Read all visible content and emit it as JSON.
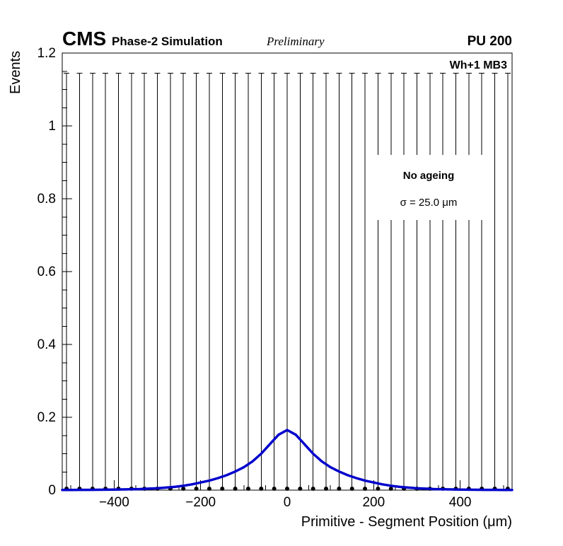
{
  "header": {
    "experiment": "CMS",
    "label": "Phase-2 Simulation",
    "style": "Preliminary",
    "pileup": "PU 200"
  },
  "plot": {
    "station_label": "Wh+1 MB3",
    "annotation": {
      "line1": "No ageing",
      "line2": "σ = 25.0 μm"
    }
  },
  "chart_data": {
    "type": "scatter",
    "title": "",
    "xlabel": "Primitive - Segment Position (μm)",
    "ylabel": "Events",
    "xlim": [
      -520,
      520
    ],
    "ylim": [
      0,
      1.2
    ],
    "grid": false,
    "legend_position": "upper-right-inside",
    "x_ticks": {
      "major": [
        -400,
        -200,
        0,
        200,
        400
      ],
      "labels": [
        "−400",
        "−200",
        "0",
        "200",
        "400"
      ],
      "minor_step": 50
    },
    "y_ticks": {
      "major": [
        0,
        0.2,
        0.4,
        0.6,
        0.8,
        1,
        1.2
      ],
      "labels": [
        "0",
        "0.2",
        "0.4",
        "0.6",
        "0.8",
        "1",
        "1.2"
      ],
      "minor_step": 0.05
    },
    "data_points": {
      "marker": "filled-circle",
      "color": "#000000",
      "x_start": -510,
      "x_step": 30,
      "count": 35,
      "y_value": 0.004,
      "error_bar_top": 1.145
    },
    "fit_curve": {
      "color": "#0000cc",
      "sigma_um": 25.0,
      "peak_y": 0.165,
      "x_start": -520,
      "x_step": 20,
      "y_values": [
        0.0005,
        0.0006,
        0.0007,
        0.0008,
        0.001,
        0.0012,
        0.0015,
        0.002,
        0.0025,
        0.003,
        0.004,
        0.005,
        0.007,
        0.009,
        0.012,
        0.016,
        0.021,
        0.026,
        0.033,
        0.041,
        0.051,
        0.063,
        0.079,
        0.1,
        0.126,
        0.152,
        0.165,
        0.152,
        0.126,
        0.1,
        0.079,
        0.063,
        0.051,
        0.041,
        0.033,
        0.026,
        0.021,
        0.016,
        0.012,
        0.009,
        0.007,
        0.005,
        0.004,
        0.003,
        0.0025,
        0.002,
        0.0015,
        0.0012,
        0.001,
        0.0008,
        0.0007,
        0.0006,
        0.0005
      ]
    }
  }
}
